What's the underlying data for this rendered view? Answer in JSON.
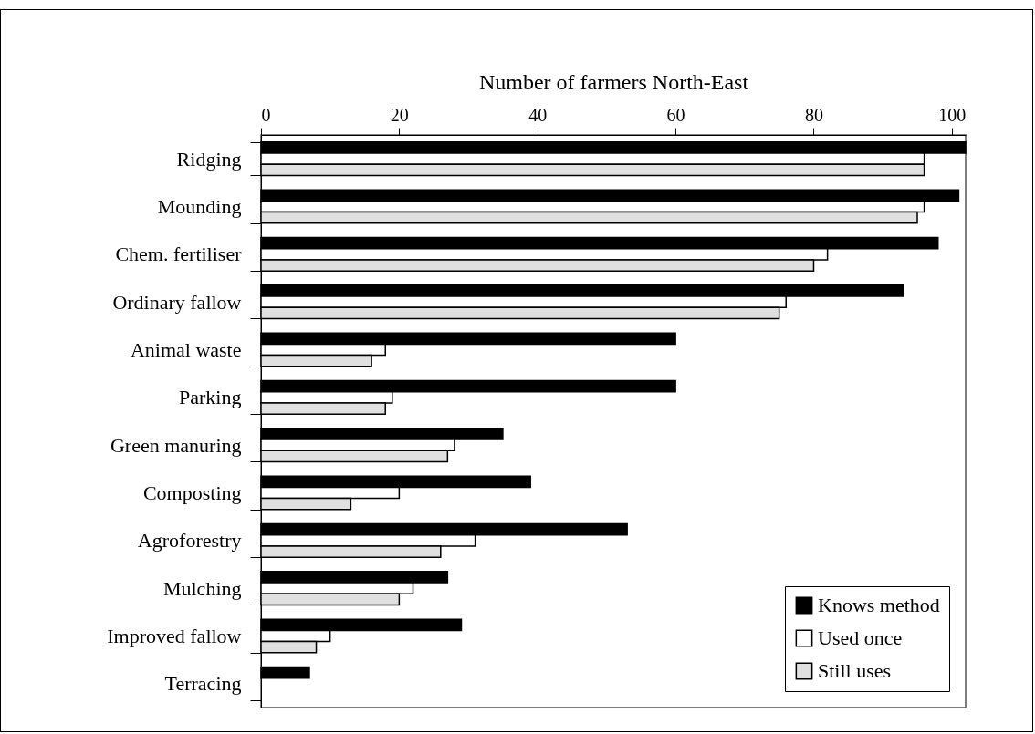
{
  "chart_data": {
    "type": "bar",
    "orientation": "horizontal",
    "xlabel": "Number of farmers North-East",
    "categories": [
      "Ridging",
      "Mounding",
      "Chem. fertiliser",
      "Ordinary fallow",
      "Animal waste",
      "Parking",
      "Green manuring",
      "Composting",
      "Agroforestry",
      "Mulching",
      "Improved fallow",
      "Terracing"
    ],
    "series": [
      {
        "name": "Knows method",
        "color": "#000000",
        "values": [
          102,
          101,
          98,
          93,
          60,
          60,
          35,
          39,
          53,
          27,
          29,
          7
        ]
      },
      {
        "name": "Used once",
        "color": "#ffffff",
        "values": [
          96,
          96,
          82,
          76,
          18,
          19,
          28,
          20,
          31,
          22,
          10,
          null
        ]
      },
      {
        "name": "Still uses",
        "color": "#e0e0e0",
        "values": [
          96,
          95,
          80,
          75,
          16,
          18,
          27,
          13,
          26,
          20,
          8,
          null
        ]
      }
    ],
    "xlim": [
      0,
      102
    ],
    "xticks": [
      0,
      20,
      40,
      60,
      80,
      100
    ],
    "legend": "bottom right"
  }
}
